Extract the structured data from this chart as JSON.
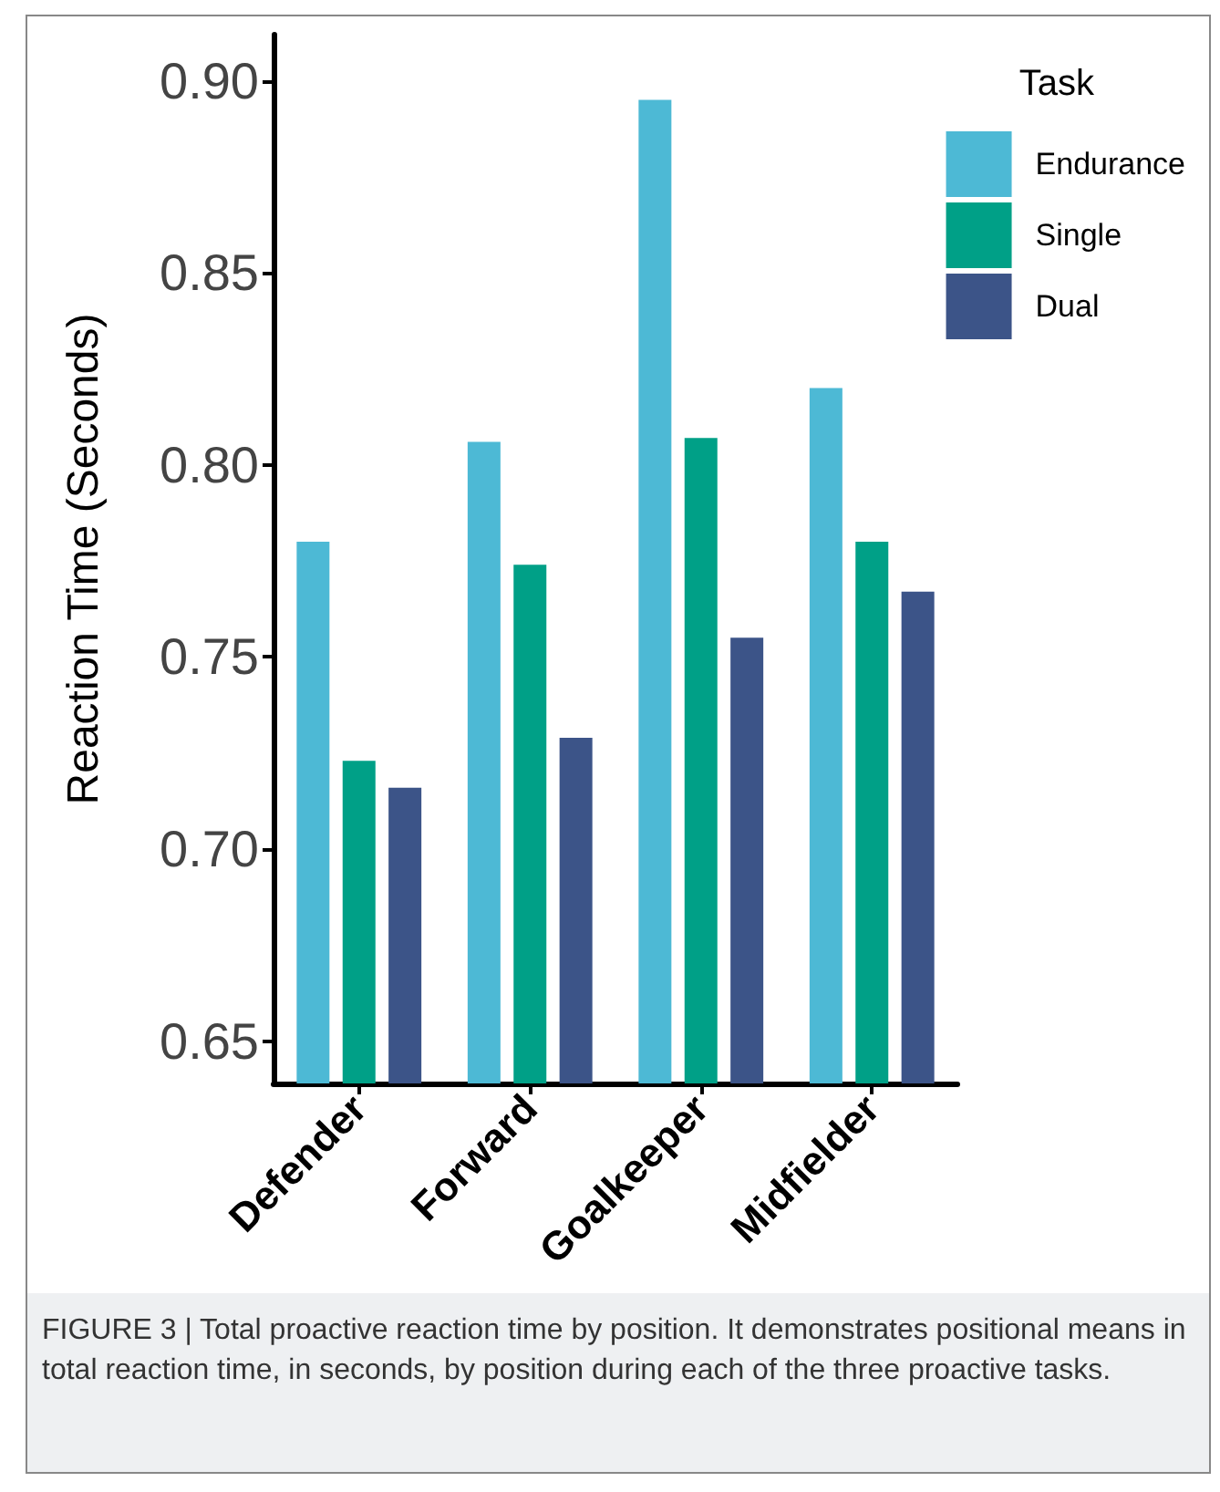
{
  "chart_data": {
    "type": "bar",
    "categories": [
      "Defender",
      "Forward",
      "Goalkeeper",
      "Midfielder"
    ],
    "series": [
      {
        "name": "Endurance",
        "color": "#4db9d5",
        "values": [
          0.78,
          0.806,
          0.895,
          0.82
        ]
      },
      {
        "name": "Single",
        "color": "#00a087",
        "values": [
          0.723,
          0.774,
          0.807,
          0.78
        ]
      },
      {
        "name": "Dual",
        "color": "#3c5488",
        "values": [
          0.716,
          0.729,
          0.755,
          0.767
        ]
      }
    ],
    "ylabel": "Reaction Time (Seconds)",
    "legend_title": "Task",
    "legend": "top right",
    "grid": false,
    "ylim": [
      0.639,
      0.912
    ],
    "yticks": [
      0.65,
      {
        "value": 0.7,
        "label": "0.70"
      },
      0.75,
      {
        "value": 0.8,
        "label": "0.80"
      },
      0.85,
      {
        "value": 0.9,
        "label": "0.90"
      }
    ],
    "annotations": [
      "FIGURE 3 | Total proactive reaction time by position. It demonstrates positional means in total reaction time, in seconds, by position during each of the three proactive tasks."
    ]
  }
}
